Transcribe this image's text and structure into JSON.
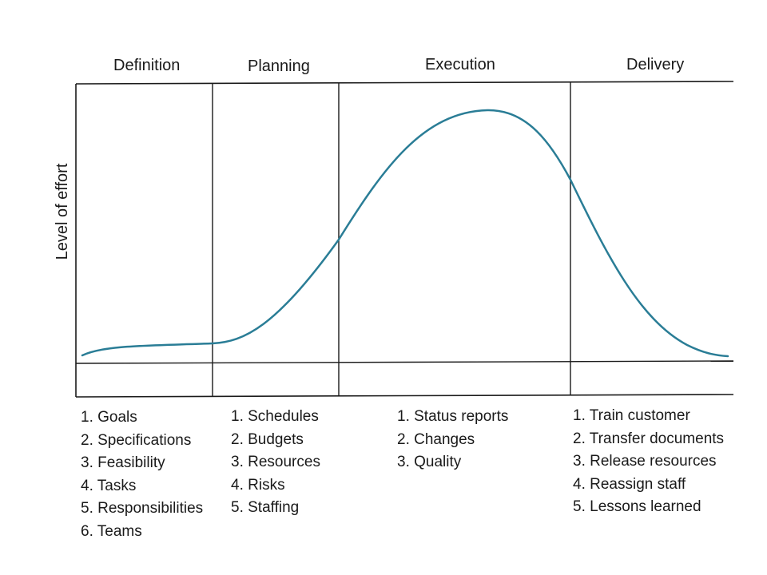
{
  "phases": [
    {
      "header": "Definition",
      "items": [
        "1. Goals",
        "2. Specifications",
        "3. Feasibility",
        "4. Tasks",
        "5. Responsibilities",
        "6. Teams"
      ]
    },
    {
      "header": "Planning",
      "items": [
        "1. Schedules",
        "2. Budgets",
        "3. Resources",
        "4. Risks",
        "5. Staffing"
      ]
    },
    {
      "header": "Execution",
      "items": [
        "1. Status reports",
        "2. Changes",
        "3. Quality"
      ]
    },
    {
      "header": "Delivery",
      "items": [
        "1. Train customer",
        "2. Transfer documents",
        "3. Release resources",
        "4. Reassign staff",
        "5. Lessons learned"
      ]
    }
  ],
  "y_axis_label": "Level of effort",
  "colors": {
    "curve": "#2a7d96",
    "lines": "#1a1a1a",
    "text": "#1a1a1a"
  }
}
